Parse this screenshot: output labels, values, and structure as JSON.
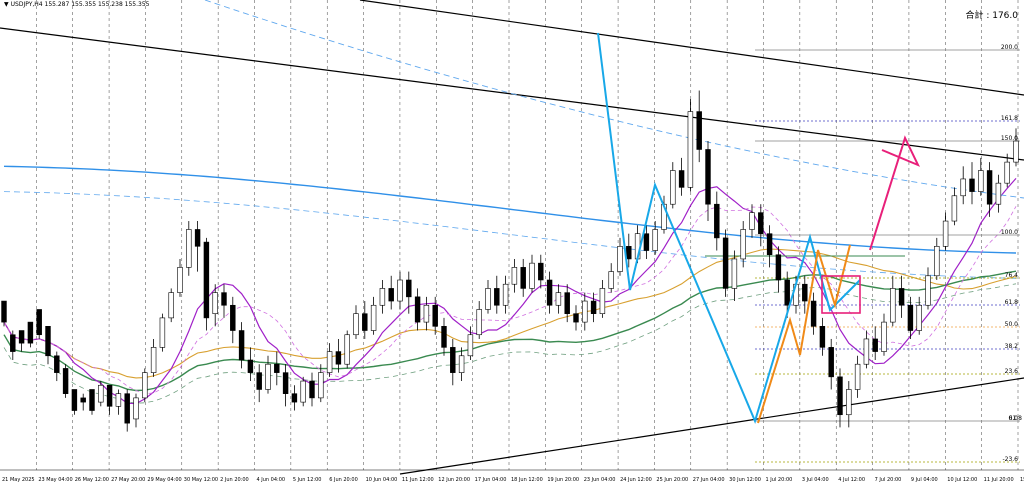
{
  "header": {
    "symbol_line": "USDJPY,H4  155.287 155.355 155.238 155.355",
    "total_label": "合計 : 176.0",
    "triangle_icon": "triangle-down-icon"
  },
  "colors": {
    "background": "#ffffff",
    "candle_up": "#ffffff",
    "candle_down": "#000000",
    "ma_fast": "#a020c8",
    "ma_fast_dashed": "#d070e0",
    "ma_mid_orange": "#d8a030",
    "ma_green": "#3a8a50",
    "ma_green_dashed": "#70a080",
    "ma_blue": "#3090e8",
    "ma_blue_dashed": "#60a8ee",
    "zigzag_cyan": "#18a8e8",
    "zigzag_orange": "#f08a18",
    "zigzag_pink": "#e8207a",
    "fib_gray": "#808080",
    "fib_blue_dotted": "#4040c0",
    "fib_olive_dotted": "#a0a000",
    "fib_orange_dotted": "#f0a040",
    "trend_black": "#000000"
  },
  "chart_data": {
    "type": "candlestick",
    "symbol": "USDJPY",
    "timeframe": "H4",
    "ohlc_readout": {
      "open": 155.287,
      "high": 155.355,
      "low": 155.238,
      "close": 155.355
    },
    "total": 176.0,
    "x_tick_labels": [
      "21 May 2025",
      "23 May 04:00",
      "26 May 12:00",
      "27 May 20:00",
      "29 May 04:00",
      "30 May 12:00",
      "2 Jun 20:00",
      "4 Jun 04:00",
      "5 Jun 12:00",
      "6 Jun 20:00",
      "10 Jun 04:00",
      "11 Jun 12:00",
      "12 Jun 20:00",
      "17 Jun 04:00",
      "18 Jun 12:00",
      "19 Jun 20:00",
      "23 Jun 04:00",
      "24 Jun 12:00",
      "25 Jun 20:00",
      "27 Jun 04:00",
      "30 Jun 12:00",
      "1 Jul 20:00",
      "3 Jul 04:00",
      "4 Jul 12:00",
      "7 Jul 20:00",
      "9 Jul 04:00",
      "10 Jul 12:00",
      "11 Jul 20:00",
      "15 Jul"
    ],
    "fib_levels": [
      "200.0",
      "161.8",
      "150.0",
      "100.0",
      "76.4",
      "61.8",
      "50.0",
      "38.2",
      "23.6",
      "0.0",
      "-23.6"
    ],
    "fib_label_extra": "61.8",
    "grid": true,
    "candles": [
      [
        145.3,
        144.8,
        145.1,
        144.7
      ],
      [
        144.5,
        144.1,
        144.6,
        143.9
      ],
      [
        144.6,
        144.3,
        144.4,
        144.1
      ],
      [
        144.8,
        144.3,
        144.6,
        144.2
      ],
      [
        145.1,
        144.5,
        145.0,
        144.4
      ],
      [
        144.7,
        144.0,
        144.6,
        143.8
      ],
      [
        144.0,
        143.6,
        144.1,
        143.4
      ],
      [
        143.7,
        143.1,
        143.8,
        143.0
      ],
      [
        143.2,
        142.7,
        143.0,
        142.6
      ],
      [
        143.0,
        142.9,
        143.1,
        142.7
      ],
      [
        143.2,
        142.7,
        143.0,
        142.6
      ],
      [
        142.9,
        143.3,
        143.4,
        142.8
      ],
      [
        143.3,
        142.8,
        143.2,
        142.6
      ],
      [
        142.8,
        143.1,
        143.2,
        142.6
      ],
      [
        143.1,
        142.4,
        143.2,
        142.2
      ],
      [
        142.5,
        143.0,
        143.1,
        142.3
      ],
      [
        143.0,
        143.6,
        143.7,
        142.9
      ],
      [
        143.6,
        144.2,
        144.4,
        143.5
      ],
      [
        144.2,
        144.9,
        145.0,
        144.1
      ],
      [
        144.9,
        145.5,
        145.6,
        144.8
      ],
      [
        145.5,
        146.1,
        146.3,
        145.4
      ],
      [
        146.1,
        147.0,
        147.2,
        145.9
      ],
      [
        147.0,
        146.6,
        147.2,
        146.0
      ],
      [
        146.7,
        144.9,
        146.8,
        144.6
      ],
      [
        145.0,
        145.5,
        145.7,
        144.7
      ],
      [
        145.5,
        145.2,
        145.7,
        144.9
      ],
      [
        145.2,
        144.6,
        145.4,
        144.3
      ],
      [
        144.6,
        143.9,
        144.8,
        143.7
      ],
      [
        143.9,
        143.6,
        144.2,
        143.4
      ],
      [
        143.6,
        143.2,
        143.8,
        142.9
      ],
      [
        143.2,
        143.8,
        144.0,
        143.1
      ],
      [
        143.8,
        143.6,
        144.1,
        143.3
      ],
      [
        143.6,
        143.1,
        143.8,
        142.8
      ],
      [
        143.1,
        142.9,
        143.3,
        142.7
      ],
      [
        142.9,
        143.4,
        143.5,
        142.8
      ],
      [
        143.4,
        143.0,
        143.6,
        142.8
      ],
      [
        143.0,
        143.6,
        143.8,
        142.9
      ],
      [
        143.6,
        144.1,
        144.3,
        143.5
      ],
      [
        144.1,
        143.8,
        144.4,
        143.6
      ],
      [
        143.8,
        144.5,
        144.6,
        143.7
      ],
      [
        144.5,
        145.0,
        145.2,
        144.4
      ],
      [
        145.0,
        144.6,
        145.3,
        144.4
      ],
      [
        144.6,
        145.2,
        145.4,
        144.5
      ],
      [
        145.2,
        145.6,
        145.8,
        145.0
      ],
      [
        145.6,
        145.3,
        145.9,
        145.1
      ],
      [
        145.3,
        145.8,
        146.0,
        145.1
      ],
      [
        145.8,
        145.4,
        146.0,
        145.0
      ],
      [
        145.4,
        144.8,
        145.6,
        144.6
      ],
      [
        144.8,
        145.2,
        145.4,
        144.6
      ],
      [
        145.2,
        144.7,
        145.4,
        144.5
      ],
      [
        144.7,
        144.2,
        144.9,
        144.0
      ],
      [
        144.2,
        143.6,
        144.4,
        143.3
      ],
      [
        143.6,
        144.0,
        144.2,
        143.4
      ],
      [
        144.0,
        144.5,
        144.7,
        143.9
      ],
      [
        144.5,
        145.1,
        145.3,
        144.4
      ],
      [
        145.1,
        145.6,
        145.8,
        145.0
      ],
      [
        145.6,
        145.2,
        145.9,
        145.0
      ],
      [
        145.2,
        145.7,
        145.9,
        145.0
      ],
      [
        145.7,
        146.1,
        146.3,
        145.5
      ],
      [
        146.1,
        145.6,
        146.3,
        145.4
      ],
      [
        145.6,
        146.2,
        146.4,
        145.5
      ],
      [
        146.2,
        145.8,
        146.4,
        145.6
      ],
      [
        145.8,
        145.2,
        146.0,
        145.0
      ],
      [
        145.2,
        145.5,
        145.7,
        145.0
      ],
      [
        145.5,
        145.0,
        145.7,
        144.8
      ],
      [
        145.0,
        144.8,
        145.2,
        144.6
      ],
      [
        144.8,
        145.3,
        145.5,
        144.6
      ],
      [
        145.3,
        145.0,
        145.5,
        144.8
      ],
      [
        145.0,
        145.6,
        145.8,
        144.9
      ],
      [
        145.6,
        146.0,
        146.2,
        145.5
      ],
      [
        146.0,
        146.6,
        146.8,
        145.9
      ],
      [
        146.6,
        146.3,
        146.9,
        146.1
      ],
      [
        146.3,
        146.9,
        147.1,
        146.2
      ],
      [
        146.9,
        146.5,
        147.1,
        146.3
      ],
      [
        146.5,
        147.0,
        147.2,
        146.4
      ],
      [
        147.0,
        147.6,
        147.8,
        146.9
      ],
      [
        147.6,
        148.4,
        148.6,
        147.5
      ],
      [
        148.4,
        148.0,
        148.7,
        147.8
      ],
      [
        148.0,
        149.8,
        150.1,
        147.9
      ],
      [
        149.8,
        148.9,
        150.3,
        148.6
      ],
      [
        148.9,
        147.6,
        149.1,
        147.2
      ],
      [
        147.6,
        146.8,
        147.9,
        146.5
      ],
      [
        146.8,
        145.6,
        147.0,
        145.4
      ],
      [
        145.6,
        146.3,
        146.5,
        145.3
      ],
      [
        146.3,
        147.0,
        147.2,
        146.1
      ],
      [
        147.0,
        147.4,
        147.6,
        146.8
      ],
      [
        147.4,
        146.9,
        147.6,
        146.6
      ],
      [
        146.9,
        146.4,
        147.1,
        146.1
      ],
      [
        146.4,
        145.8,
        146.6,
        145.5
      ],
      [
        145.8,
        145.2,
        146.0,
        144.9
      ],
      [
        145.2,
        145.7,
        145.9,
        145.0
      ],
      [
        145.7,
        145.3,
        145.9,
        145.0
      ],
      [
        145.3,
        144.7,
        145.5,
        144.5
      ],
      [
        144.7,
        144.2,
        144.9,
        144.0
      ],
      [
        144.2,
        143.5,
        144.4,
        143.2
      ],
      [
        143.5,
        142.6,
        143.7,
        142.3
      ],
      [
        142.6,
        143.2,
        143.4,
        142.3
      ],
      [
        143.2,
        143.8,
        144.0,
        143.0
      ],
      [
        143.8,
        144.4,
        144.6,
        143.7
      ],
      [
        144.4,
        144.1,
        144.7,
        143.9
      ],
      [
        144.1,
        144.8,
        145.0,
        144.0
      ],
      [
        144.8,
        145.6,
        145.9,
        144.7
      ],
      [
        145.6,
        145.2,
        145.9,
        144.9
      ],
      [
        145.2,
        144.6,
        145.4,
        144.4
      ],
      [
        144.6,
        145.2,
        145.4,
        144.5
      ],
      [
        145.2,
        145.9,
        146.1,
        145.1
      ],
      [
        145.9,
        146.6,
        146.8,
        145.8
      ],
      [
        146.6,
        147.2,
        147.4,
        146.5
      ],
      [
        147.2,
        147.8,
        148.0,
        147.1
      ],
      [
        147.8,
        148.2,
        148.5,
        147.6
      ],
      [
        148.2,
        147.9,
        148.6,
        147.6
      ],
      [
        147.9,
        148.4,
        148.7,
        147.8
      ],
      [
        148.4,
        147.6,
        148.6,
        147.3
      ],
      [
        147.6,
        148.1,
        148.3,
        147.4
      ],
      [
        148.1,
        148.6,
        148.8,
        148.0
      ],
      [
        148.6,
        149.1,
        149.4,
        148.5
      ]
    ]
  }
}
